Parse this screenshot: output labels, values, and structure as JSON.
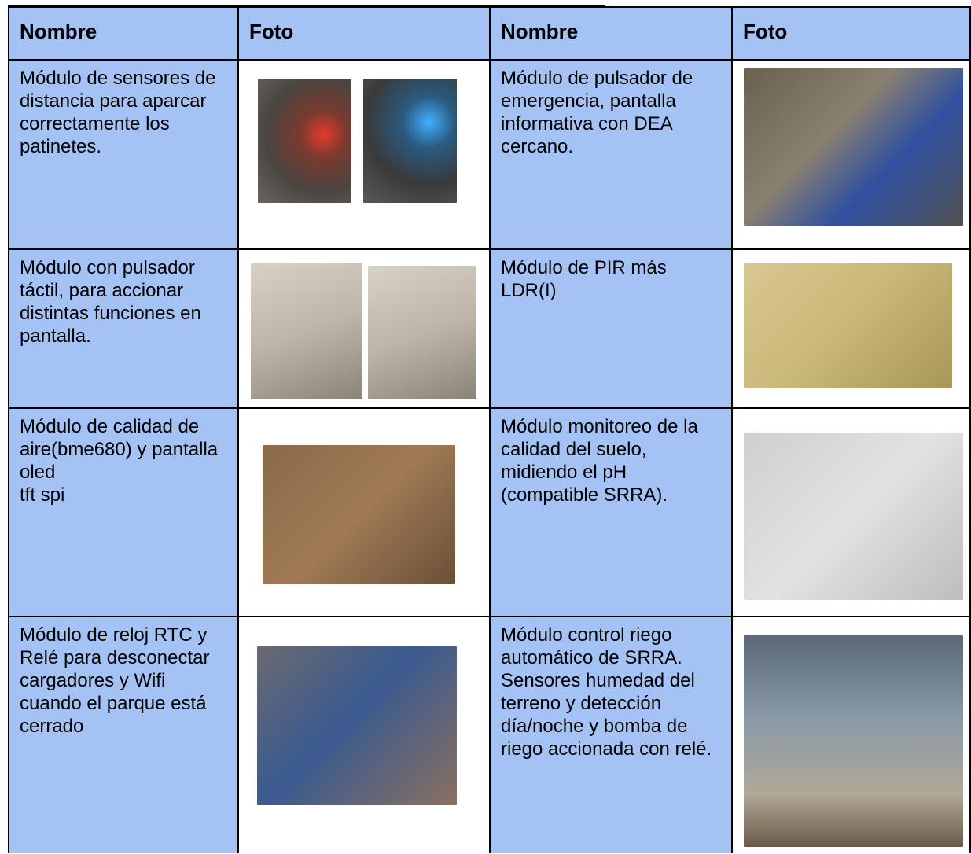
{
  "table": {
    "header": [
      "Nombre",
      "Foto",
      "Nombre",
      "Foto"
    ],
    "rows": [
      [
        "Módulo de sensores de distancia para aparcar correctamente los patinetes.",
        "Módulo de pulsador de emergencia, pantalla informativa con DEA cercano."
      ],
      [
        "Módulo con pulsador táctil, para accionar distintas funciones en pantalla.",
        "Módulo de PIR más LDR(I)"
      ],
      [
        "Módulo de calidad de aire(bme680) y pantalla oled\ntft spi",
        "Módulo monitoreo de la calidad del suelo, midiendo el pH (compatible SRRA)."
      ],
      [
        "Módulo de reloj RTC y Relé para desconectar cargadores y Wifi cuando el parque está cerrado",
        "Módulo control riego automático de SRRA. Sensores humedad del terreno y detección día/noche y bomba de riego accionada con relé."
      ]
    ]
  }
}
